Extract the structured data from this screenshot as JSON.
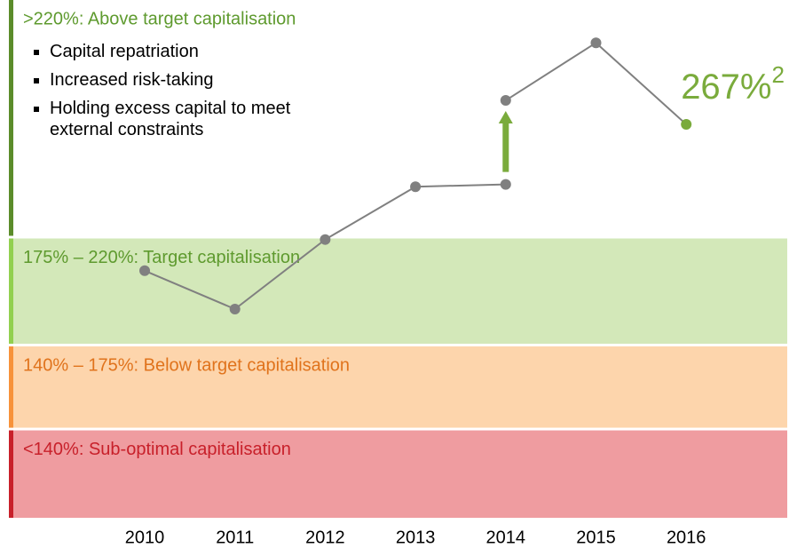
{
  "chart_data": {
    "type": "line",
    "categories": [
      "2010",
      "2011",
      "2012",
      "2013",
      "2014",
      "2015",
      "2016"
    ],
    "values": [
      206,
      190,
      219,
      241,
      277,
      301,
      267
    ],
    "prior_values": [
      null,
      null,
      null,
      null,
      242,
      null,
      null
    ],
    "value_labels": [
      null,
      null,
      null,
      null,
      null,
      null,
      "267%"
    ],
    "value_label_note": "2",
    "line_color": "#808080",
    "highlight_color": "#7aab3c",
    "ylim": [
      103,
      317
    ],
    "bands": [
      {
        "label": ">220%: Above target capitalisation",
        "min": 220,
        "color": "#ffffff",
        "bar_color": "#5b8c2a",
        "text_color": "#5e9a2e",
        "bullets": [
          "Capital repatriation",
          "Increased risk-taking",
          "Holding excess capital to meet external constraints"
        ]
      },
      {
        "label": "175% – 220%: Target capitalisation",
        "min": 175,
        "max": 220,
        "color": "#d3e8b9",
        "bar_color": "#92d050",
        "text_color": "#5e9a2e"
      },
      {
        "label": "140% – 175%: Below target capitalisation",
        "min": 140,
        "max": 175,
        "color": "#fdd5ac",
        "bar_color": "#f7923a",
        "text_color": "#e0731c"
      },
      {
        "label": "<140%: Sub-optimal capitalisation",
        "max": 140,
        "color": "#ef9ca0",
        "bar_color": "#c8202a",
        "text_color": "#c8202a"
      }
    ]
  }
}
